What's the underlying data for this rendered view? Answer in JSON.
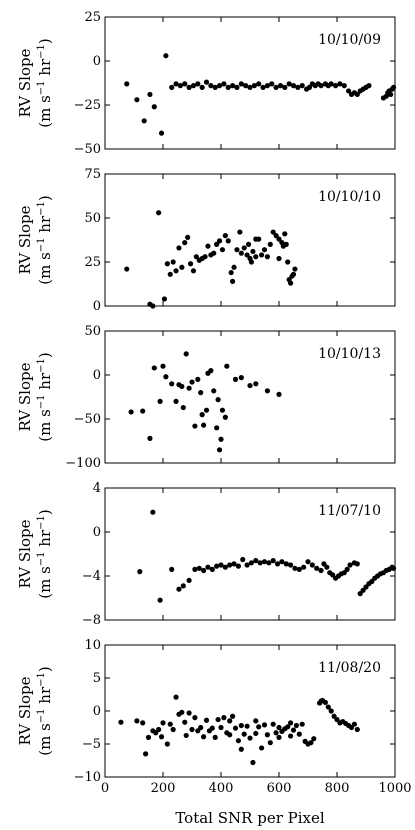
{
  "chart_data": [
    {
      "type": "scatter",
      "date_label": "10/10/09",
      "ylabel": "RV Slope",
      "yunits": "(m s$^{-1}$ hr$^{-1}$)",
      "ylim": [
        -50,
        25
      ],
      "yticks": [
        25,
        0,
        -25,
        -50
      ],
      "xlim": [
        0,
        1000
      ],
      "points": [
        [
          75,
          -13
        ],
        [
          110,
          -22
        ],
        [
          135,
          -34
        ],
        [
          155,
          -19
        ],
        [
          170,
          -26
        ],
        [
          195,
          -41
        ],
        [
          210,
          3
        ],
        [
          230,
          -15
        ],
        [
          245,
          -13
        ],
        [
          260,
          -14
        ],
        [
          275,
          -13
        ],
        [
          290,
          -15
        ],
        [
          305,
          -14
        ],
        [
          320,
          -13
        ],
        [
          335,
          -15
        ],
        [
          350,
          -12
        ],
        [
          365,
          -14
        ],
        [
          380,
          -15
        ],
        [
          395,
          -14
        ],
        [
          410,
          -13
        ],
        [
          425,
          -15
        ],
        [
          440,
          -14
        ],
        [
          455,
          -15
        ],
        [
          470,
          -13
        ],
        [
          485,
          -14
        ],
        [
          500,
          -15
        ],
        [
          515,
          -14
        ],
        [
          530,
          -13
        ],
        [
          545,
          -15
        ],
        [
          560,
          -14
        ],
        [
          575,
          -13
        ],
        [
          590,
          -15
        ],
        [
          605,
          -14
        ],
        [
          620,
          -15
        ],
        [
          635,
          -13
        ],
        [
          650,
          -14
        ],
        [
          665,
          -15
        ],
        [
          680,
          -14
        ],
        [
          695,
          -16
        ],
        [
          705,
          -15
        ],
        [
          715,
          -13
        ],
        [
          725,
          -14
        ],
        [
          735,
          -13
        ],
        [
          745,
          -14
        ],
        [
          760,
          -13
        ],
        [
          770,
          -14
        ],
        [
          780,
          -13
        ],
        [
          795,
          -14
        ],
        [
          810,
          -13
        ],
        [
          825,
          -14
        ],
        [
          840,
          -17
        ],
        [
          850,
          -19
        ],
        [
          860,
          -18
        ],
        [
          870,
          -19
        ],
        [
          880,
          -17
        ],
        [
          890,
          -16
        ],
        [
          900,
          -15
        ],
        [
          910,
          -14
        ],
        [
          960,
          -21
        ],
        [
          970,
          -20
        ],
        [
          975,
          -18
        ],
        [
          980,
          -17
        ],
        [
          985,
          -19
        ],
        [
          990,
          -16
        ],
        [
          995,
          -15
        ]
      ]
    },
    {
      "type": "scatter",
      "date_label": "10/10/10",
      "ylabel": "RV Slope",
      "yunits": "(m s$^{-1}$ hr$^{-1}$)",
      "ylim": [
        0,
        75
      ],
      "yticks": [
        75,
        50,
        25,
        0
      ],
      "xlim": [
        0,
        1000
      ],
      "points": [
        [
          75,
          21
        ],
        [
          155,
          1
        ],
        [
          165,
          0
        ],
        [
          185,
          53
        ],
        [
          205,
          4
        ],
        [
          215,
          24
        ],
        [
          225,
          18
        ],
        [
          235,
          25
        ],
        [
          245,
          20
        ],
        [
          255,
          33
        ],
        [
          265,
          22
        ],
        [
          275,
          36
        ],
        [
          285,
          39
        ],
        [
          295,
          24
        ],
        [
          305,
          20
        ],
        [
          315,
          28
        ],
        [
          325,
          26
        ],
        [
          335,
          27
        ],
        [
          345,
          28
        ],
        [
          355,
          34
        ],
        [
          365,
          29
        ],
        [
          375,
          30
        ],
        [
          385,
          35
        ],
        [
          395,
          37
        ],
        [
          405,
          32
        ],
        [
          415,
          40
        ],
        [
          425,
          37
        ],
        [
          435,
          19
        ],
        [
          440,
          14
        ],
        [
          445,
          22
        ],
        [
          455,
          32
        ],
        [
          465,
          42
        ],
        [
          470,
          30
        ],
        [
          480,
          33
        ],
        [
          490,
          29
        ],
        [
          500,
          27
        ],
        [
          510,
          31
        ],
        [
          520,
          28
        ],
        [
          530,
          38
        ],
        [
          540,
          29
        ],
        [
          550,
          32
        ],
        [
          560,
          28
        ],
        [
          570,
          35
        ],
        [
          580,
          42
        ],
        [
          590,
          40
        ],
        [
          600,
          38
        ],
        [
          610,
          36
        ],
        [
          620,
          41
        ],
        [
          630,
          25
        ],
        [
          635,
          15
        ],
        [
          640,
          13
        ],
        [
          645,
          17
        ],
        [
          650,
          18
        ],
        [
          655,
          21
        ],
        [
          600,
          27
        ],
        [
          615,
          34
        ],
        [
          625,
          35
        ],
        [
          520,
          38
        ],
        [
          505,
          25
        ],
        [
          495,
          35
        ]
      ]
    },
    {
      "type": "scatter",
      "date_label": "10/10/13",
      "ylabel": "RV Slope",
      "yunits": "(m s$^{-1}$ hr$^{-1}$)",
      "ylim": [
        -100,
        50
      ],
      "yticks": [
        50,
        0,
        -50,
        -100
      ],
      "xlim": [
        0,
        1000
      ],
      "points": [
        [
          90,
          -42
        ],
        [
          130,
          -41
        ],
        [
          155,
          -72
        ],
        [
          170,
          8
        ],
        [
          190,
          -30
        ],
        [
          200,
          10
        ],
        [
          210,
          -2
        ],
        [
          230,
          -10
        ],
        [
          245,
          -30
        ],
        [
          255,
          -11
        ],
        [
          265,
          -13
        ],
        [
          270,
          -37
        ],
        [
          280,
          24
        ],
        [
          290,
          -15
        ],
        [
          300,
          -8
        ],
        [
          310,
          -58
        ],
        [
          320,
          -5
        ],
        [
          330,
          -20
        ],
        [
          335,
          -45
        ],
        [
          340,
          -57
        ],
        [
          350,
          -40
        ],
        [
          355,
          2
        ],
        [
          365,
          5
        ],
        [
          375,
          -18
        ],
        [
          385,
          -60
        ],
        [
          390,
          -28
        ],
        [
          395,
          -85
        ],
        [
          400,
          -73
        ],
        [
          405,
          -40
        ],
        [
          415,
          -48
        ],
        [
          420,
          10
        ],
        [
          450,
          -5
        ],
        [
          470,
          -3
        ],
        [
          500,
          -12
        ],
        [
          520,
          -10
        ],
        [
          560,
          -18
        ],
        [
          600,
          -22
        ]
      ]
    },
    {
      "type": "scatter",
      "date_label": "11/07/10",
      "ylabel": "RV Slope",
      "yunits": "(m s$^{-1}$ hr$^{-1}$)",
      "ylim": [
        -8,
        4
      ],
      "yticks": [
        4,
        0,
        -4,
        -8
      ],
      "xlim": [
        0,
        1000
      ],
      "points": [
        [
          120,
          -3.6
        ],
        [
          165,
          1.8
        ],
        [
          190,
          -6.2
        ],
        [
          230,
          -3.4
        ],
        [
          255,
          -5.2
        ],
        [
          270,
          -4.9
        ],
        [
          290,
          -4.4
        ],
        [
          310,
          -3.4
        ],
        [
          325,
          -3.3
        ],
        [
          340,
          -3.5
        ],
        [
          355,
          -3.2
        ],
        [
          370,
          -3.4
        ],
        [
          385,
          -3.1
        ],
        [
          400,
          -3.0
        ],
        [
          415,
          -3.2
        ],
        [
          430,
          -3.0
        ],
        [
          445,
          -2.9
        ],
        [
          460,
          -3.1
        ],
        [
          475,
          -2.5
        ],
        [
          490,
          -3.0
        ],
        [
          505,
          -2.8
        ],
        [
          520,
          -2.6
        ],
        [
          535,
          -2.8
        ],
        [
          550,
          -2.7
        ],
        [
          565,
          -2.8
        ],
        [
          580,
          -2.6
        ],
        [
          595,
          -2.9
        ],
        [
          610,
          -2.7
        ],
        [
          625,
          -2.9
        ],
        [
          640,
          -3.0
        ],
        [
          655,
          -3.3
        ],
        [
          670,
          -3.4
        ],
        [
          685,
          -3.2
        ],
        [
          700,
          -2.7
        ],
        [
          715,
          -3.0
        ],
        [
          730,
          -3.3
        ],
        [
          745,
          -3.5
        ],
        [
          755,
          -2.9
        ],
        [
          765,
          -3.2
        ],
        [
          775,
          -3.7
        ],
        [
          785,
          -3.9
        ],
        [
          795,
          -4.2
        ],
        [
          805,
          -4.0
        ],
        [
          815,
          -3.8
        ],
        [
          825,
          -3.7
        ],
        [
          835,
          -3.4
        ],
        [
          845,
          -3.0
        ],
        [
          860,
          -2.8
        ],
        [
          870,
          -2.9
        ],
        [
          880,
          -5.6
        ],
        [
          890,
          -5.3
        ],
        [
          900,
          -5.0
        ],
        [
          910,
          -4.7
        ],
        [
          920,
          -4.5
        ],
        [
          930,
          -4.2
        ],
        [
          940,
          -4.0
        ],
        [
          950,
          -3.8
        ],
        [
          960,
          -3.7
        ],
        [
          970,
          -3.5
        ],
        [
          980,
          -3.4
        ],
        [
          990,
          -3.2
        ],
        [
          995,
          -3.3
        ]
      ]
    },
    {
      "type": "scatter",
      "date_label": "11/08/20",
      "ylabel": "RV Slope",
      "yunits": "(m s$^{-1}$ hr$^{-1}$)",
      "ylim": [
        -10,
        10
      ],
      "yticks": [
        10,
        5,
        0,
        -5,
        -10
      ],
      "xlabel": "Total SNR per Pixel",
      "xticks": [
        0,
        200,
        400,
        600,
        800,
        1000
      ],
      "xlim": [
        0,
        1000
      ],
      "points": [
        [
          55,
          -1.7
        ],
        [
          110,
          -1.5
        ],
        [
          130,
          -1.8
        ],
        [
          140,
          -6.5
        ],
        [
          150,
          -4.0
        ],
        [
          165,
          -3.0
        ],
        [
          175,
          -3.3
        ],
        [
          185,
          -2.8
        ],
        [
          195,
          -3.9
        ],
        [
          200,
          -1.8
        ],
        [
          215,
          -5.0
        ],
        [
          225,
          -2.0
        ],
        [
          235,
          -2.8
        ],
        [
          245,
          2.1
        ],
        [
          255,
          -0.5
        ],
        [
          265,
          -0.2
        ],
        [
          275,
          -1.7
        ],
        [
          280,
          -3.7
        ],
        [
          290,
          -0.3
        ],
        [
          300,
          -2.8
        ],
        [
          310,
          -1.0
        ],
        [
          320,
          -3.0
        ],
        [
          330,
          -2.5
        ],
        [
          340,
          -3.9
        ],
        [
          350,
          -1.4
        ],
        [
          360,
          -3.0
        ],
        [
          370,
          -2.6
        ],
        [
          380,
          -4.0
        ],
        [
          390,
          -1.3
        ],
        [
          400,
          -2.5
        ],
        [
          410,
          -1.0
        ],
        [
          420,
          -3.3
        ],
        [
          430,
          -1.5
        ],
        [
          440,
          -0.8
        ],
        [
          450,
          -2.6
        ],
        [
          460,
          -4.5
        ],
        [
          470,
          -5.8
        ],
        [
          480,
          -3.5
        ],
        [
          490,
          -2.3
        ],
        [
          500,
          -4.1
        ],
        [
          510,
          -7.8
        ],
        [
          520,
          -3.4
        ],
        [
          530,
          -2.4
        ],
        [
          540,
          -5.6
        ],
        [
          550,
          -2.1
        ],
        [
          560,
          -3.6
        ],
        [
          570,
          -4.8
        ],
        [
          580,
          -2.0
        ],
        [
          590,
          -3.3
        ],
        [
          600,
          -2.5
        ],
        [
          610,
          -3.1
        ],
        [
          620,
          -2.7
        ],
        [
          630,
          -2.4
        ],
        [
          640,
          -3.8
        ],
        [
          650,
          -2.9
        ],
        [
          660,
          -2.2
        ],
        [
          670,
          -3.5
        ],
        [
          680,
          -2.0
        ],
        [
          690,
          -4.6
        ],
        [
          700,
          -5.0
        ],
        [
          710,
          -4.8
        ],
        [
          720,
          -4.2
        ],
        [
          740,
          1.2
        ],
        [
          745,
          1.5
        ],
        [
          750,
          1.6
        ],
        [
          760,
          1.3
        ],
        [
          770,
          0.6
        ],
        [
          780,
          0.0
        ],
        [
          790,
          -0.8
        ],
        [
          800,
          -1.3
        ],
        [
          810,
          -1.8
        ],
        [
          820,
          -1.6
        ],
        [
          830,
          -1.9
        ],
        [
          840,
          -2.2
        ],
        [
          850,
          -2.5
        ],
        [
          860,
          -2.0
        ],
        [
          870,
          -2.8
        ],
        [
          430,
          -3.6
        ],
        [
          470,
          -2.2
        ],
        [
          520,
          -1.5
        ],
        [
          640,
          -1.8
        ],
        [
          600,
          -4.0
        ]
      ]
    }
  ]
}
